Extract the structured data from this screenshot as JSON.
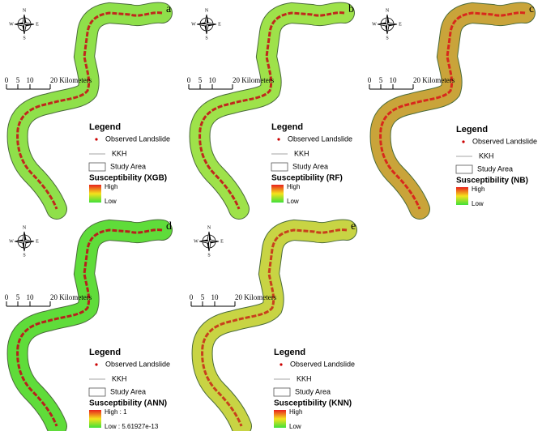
{
  "compass": {
    "n": "N",
    "s": "S",
    "e": "E",
    "w": "W"
  },
  "scale": {
    "labels": [
      "0",
      "5",
      "10",
      "20 Kilometers"
    ]
  },
  "legend": {
    "title": "Legend",
    "observed": "Observed Landslide",
    "road": "KKH",
    "study_area": "Study Area"
  },
  "panels": [
    {
      "letter": "a",
      "susceptibility_title": "Susceptibility (XGB)",
      "high": "High",
      "low": "Low"
    },
    {
      "letter": "b",
      "susceptibility_title": "Susceptibility (RF)",
      "high": "High",
      "low": "Low"
    },
    {
      "letter": "c",
      "susceptibility_title": "Susceptibility (NB)",
      "high": "High",
      "low": "Low"
    },
    {
      "letter": "d",
      "susceptibility_title": "Susceptibility (ANN)",
      "high": "High : 1",
      "low": "Low : 5.61927e-13"
    },
    {
      "letter": "e",
      "susceptibility_title": "Susceptibility (KNN)",
      "high": "High",
      "low": "Low"
    }
  ]
}
